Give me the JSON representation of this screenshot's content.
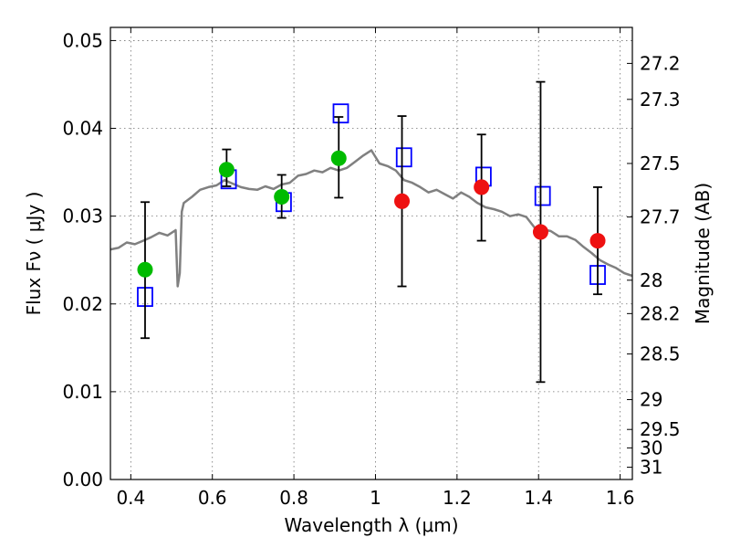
{
  "chart_data": {
    "type": "scatter",
    "title": "",
    "xlabel": "Wavelength  λ (μm)",
    "ylabel": "Flux  Fν  ( μJy )",
    "ylabel_right": "Magnitude (AB)",
    "xlim": [
      0.35,
      1.63
    ],
    "ylim": [
      0.0,
      0.0515
    ],
    "grid": true,
    "x_ticks": [
      0.4,
      0.6,
      0.8,
      1.0,
      1.2,
      1.4,
      1.6
    ],
    "x_tick_labels": [
      "0.4",
      "0.6",
      "0.8",
      "1",
      "1.2",
      "1.4",
      "1.6"
    ],
    "y_ticks": [
      0.0,
      0.01,
      0.02,
      0.03,
      0.04,
      0.05
    ],
    "y_tick_labels": [
      "0.00",
      "0.01",
      "0.02",
      "0.03",
      "0.04",
      "0.05"
    ],
    "right_ticks": [
      {
        "label": "27.2",
        "flux": 0.0474
      },
      {
        "label": "27.3",
        "flux": 0.0433
      },
      {
        "label": "27.5",
        "flux": 0.036
      },
      {
        "label": "27.7",
        "flux": 0.0299
      },
      {
        "label": "28",
        "flux": 0.0227
      },
      {
        "label": "28.2",
        "flux": 0.0189
      },
      {
        "label": "28.5",
        "flux": 0.0143
      },
      {
        "label": "29",
        "flux": 0.0091
      },
      {
        "label": "29.5",
        "flux": 0.0057
      },
      {
        "label": "30",
        "flux": 0.0036
      },
      {
        "label": "31",
        "flux": 0.0014
      }
    ],
    "series": [
      {
        "type": "line",
        "color": "#808080",
        "x": [
          0.35,
          0.37,
          0.39,
          0.41,
          0.43,
          0.45,
          0.47,
          0.49,
          0.51,
          0.515,
          0.52,
          0.525,
          0.53,
          0.55,
          0.57,
          0.59,
          0.61,
          0.63,
          0.65,
          0.67,
          0.69,
          0.71,
          0.73,
          0.75,
          0.77,
          0.79,
          0.81,
          0.83,
          0.85,
          0.87,
          0.89,
          0.91,
          0.93,
          0.95,
          0.97,
          0.99,
          1.01,
          1.03,
          1.05,
          1.07,
          1.09,
          1.11,
          1.13,
          1.15,
          1.17,
          1.19,
          1.21,
          1.23,
          1.25,
          1.27,
          1.29,
          1.31,
          1.33,
          1.35,
          1.37,
          1.39,
          1.41,
          1.43,
          1.45,
          1.47,
          1.49,
          1.51,
          1.53,
          1.55,
          1.57,
          1.59,
          1.61,
          1.63
        ],
        "y": [
          0.0262,
          0.0264,
          0.027,
          0.0268,
          0.0272,
          0.0276,
          0.0281,
          0.0278,
          0.0284,
          0.022,
          0.0235,
          0.0305,
          0.0315,
          0.0322,
          0.033,
          0.0333,
          0.0335,
          0.0341,
          0.0337,
          0.0333,
          0.0331,
          0.033,
          0.0334,
          0.0331,
          0.0336,
          0.0338,
          0.0346,
          0.0348,
          0.0352,
          0.035,
          0.0355,
          0.0352,
          0.0355,
          0.0362,
          0.0369,
          0.0375,
          0.036,
          0.0357,
          0.0352,
          0.0341,
          0.0338,
          0.0333,
          0.0327,
          0.033,
          0.0325,
          0.032,
          0.0327,
          0.0322,
          0.0315,
          0.031,
          0.0308,
          0.0305,
          0.03,
          0.0302,
          0.0299,
          0.0287,
          0.0285,
          0.0283,
          0.0277,
          0.0277,
          0.0273,
          0.0265,
          0.0258,
          0.025,
          0.0245,
          0.0241,
          0.0235,
          0.0232
        ]
      },
      {
        "type": "scatter",
        "marker": "open-square",
        "color": "#0000ff",
        "x": [
          0.435,
          0.64,
          0.775,
          0.915,
          1.07,
          1.265,
          1.41,
          1.545
        ],
        "y": [
          0.0208,
          0.0342,
          0.0316,
          0.0417,
          0.0367,
          0.0345,
          0.0323,
          0.0233
        ]
      },
      {
        "type": "scatter",
        "marker": "filled-circle",
        "color": "#00bb00",
        "x": [
          0.435,
          0.635,
          0.77,
          0.91
        ],
        "y": [
          0.0239,
          0.0353,
          0.0322,
          0.0366
        ],
        "yerr_low": [
          0.0161,
          0.0334,
          0.0298,
          0.0321
        ],
        "yerr_high": [
          0.0316,
          0.0376,
          0.0347,
          0.0413
        ]
      },
      {
        "type": "scatter",
        "marker": "filled-circle",
        "color": "#ee1111",
        "x": [
          1.065,
          1.26,
          1.405,
          1.545
        ],
        "y": [
          0.0317,
          0.0333,
          0.0282,
          0.0272
        ],
        "yerr_low": [
          0.022,
          0.0272,
          0.0111,
          0.0211
        ],
        "yerr_high": [
          0.0414,
          0.0393,
          0.0453,
          0.0333
        ]
      }
    ]
  }
}
